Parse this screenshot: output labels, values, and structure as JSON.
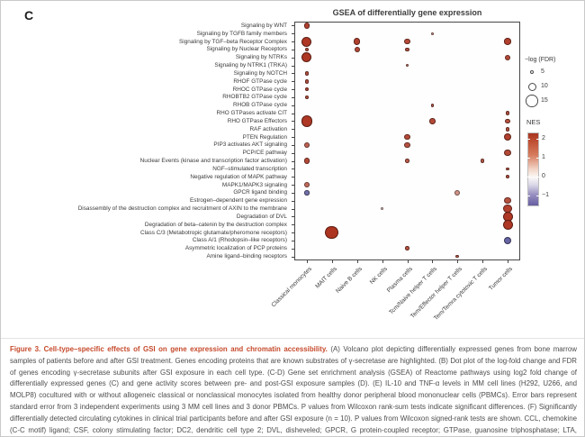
{
  "panel_label": "C",
  "chart_data": {
    "type": "scatter",
    "title": "GSEA of differentially gene expression",
    "xlabel": "",
    "ylabel": "",
    "categories_x": [
      "Classical monocytes",
      "MAIT cells",
      "Naive B cells",
      "NK cells",
      "Plasma cells",
      "Tcm/Naive helper T cells",
      "Tem/Effector helper T cells",
      "Tem/Temra cytotoxic T cells",
      "Tumor cells"
    ],
    "categories_y": [
      "Signaling by WNT",
      "Signaling by TGFB family members",
      "Signaling by TGF–beta Receptor Complex",
      "Signaling by Nuclear Receptors",
      "Signaling by NTRKs",
      "Signaling by NTRK1 (TRKA)",
      "Signaling by NOTCH",
      "RHOF GTPase cycle",
      "RHOC GTPase cycle",
      "RHOBTB2 GTPase cycle",
      "RHOB GTPase cycle",
      "RHO GTPases activate CIT",
      "RHO GTPase Effectors",
      "RAF activation",
      "PTEN Regulation",
      "PIP3 activates AKT signaling",
      "PCP/CE pathway",
      "Nuclear Events (kinase and transcription factor activation)",
      "NGF–stimulated transcription",
      "Negative regulation of MAPK pathway",
      "MAPK1/MAPK3 signaling",
      "GPCR ligand binding",
      "Estrogen–dependent gene expression",
      "Disassembly of the destruction complex and recruitment of AXIN to the membrane",
      "Degradation of DVL",
      "Degradation of beta–catenin by the destruction complex",
      "Class C/3 (Metabotropic glutamate/pheromone receptors)",
      "Class A/1 (Rhodopsin–like receptors)",
      "Asymmetric localization of PCP proteins",
      "Amine ligand–binding receptors"
    ],
    "size_legend": {
      "title": "−log (FDR)",
      "values": [
        5,
        10,
        15
      ]
    },
    "color_legend": {
      "title": "NES",
      "ticks": [
        2,
        1,
        0,
        -1
      ],
      "domain_top": 2.35,
      "domain_bottom": -1.6,
      "color_high": "#ac3420",
      "color_mid": "#f8f6f4",
      "color_low": "#504e96"
    },
    "points": [
      {
        "r": 1,
        "c": 1,
        "fdr": 7,
        "nes": 2.2
      },
      {
        "r": 2,
        "c": 6,
        "fdr": 3,
        "nes": 1.2
      },
      {
        "r": 3,
        "c": 1,
        "fdr": 12,
        "nes": 2.3
      },
      {
        "r": 3,
        "c": 3,
        "fdr": 8,
        "nes": 2.2
      },
      {
        "r": 3,
        "c": 5,
        "fdr": 7,
        "nes": 2.1
      },
      {
        "r": 3,
        "c": 9,
        "fdr": 8,
        "nes": 2.2
      },
      {
        "r": 4,
        "c": 1,
        "fdr": 5,
        "nes": 2.0
      },
      {
        "r": 4,
        "c": 3,
        "fdr": 7,
        "nes": 2.1
      },
      {
        "r": 4,
        "c": 5,
        "fdr": 5,
        "nes": 2.0
      },
      {
        "r": 5,
        "c": 1,
        "fdr": 12,
        "nes": 2.3
      },
      {
        "r": 5,
        "c": 9,
        "fdr": 7,
        "nes": 2.1
      },
      {
        "r": 6,
        "c": 5,
        "fdr": 4,
        "nes": 1.6
      },
      {
        "r": 7,
        "c": 1,
        "fdr": 5,
        "nes": 2.0
      },
      {
        "r": 8,
        "c": 1,
        "fdr": 5,
        "nes": 2.0
      },
      {
        "r": 9,
        "c": 1,
        "fdr": 5,
        "nes": 2.1
      },
      {
        "r": 10,
        "c": 1,
        "fdr": 4,
        "nes": 2.0
      },
      {
        "r": 11,
        "c": 6,
        "fdr": 4,
        "nes": 1.9
      },
      {
        "r": 12,
        "c": 9,
        "fdr": 5,
        "nes": 2.0
      },
      {
        "r": 13,
        "c": 1,
        "fdr": 14,
        "nes": 2.3
      },
      {
        "r": 13,
        "c": 6,
        "fdr": 7,
        "nes": 2.1
      },
      {
        "r": 13,
        "c": 9,
        "fdr": 6,
        "nes": 2.0
      },
      {
        "r": 14,
        "c": 9,
        "fdr": 5,
        "nes": 2.0
      },
      {
        "r": 15,
        "c": 5,
        "fdr": 7,
        "nes": 2.1
      },
      {
        "r": 15,
        "c": 9,
        "fdr": 9,
        "nes": 2.2
      },
      {
        "r": 16,
        "c": 1,
        "fdr": 7,
        "nes": 1.8
      },
      {
        "r": 16,
        "c": 5,
        "fdr": 7,
        "nes": 2.0
      },
      {
        "r": 17,
        "c": 9,
        "fdr": 8,
        "nes": 2.1
      },
      {
        "r": 18,
        "c": 1,
        "fdr": 7,
        "nes": 2.1
      },
      {
        "r": 18,
        "c": 5,
        "fdr": 5,
        "nes": 1.9
      },
      {
        "r": 18,
        "c": 8,
        "fdr": 5,
        "nes": 1.9
      },
      {
        "r": 19,
        "c": 9,
        "fdr": 4,
        "nes": 2.0
      },
      {
        "r": 20,
        "c": 9,
        "fdr": 4,
        "nes": 2.0
      },
      {
        "r": 21,
        "c": 1,
        "fdr": 7,
        "nes": 1.7
      },
      {
        "r": 22,
        "c": 1,
        "fdr": 6,
        "nes": -1.2
      },
      {
        "r": 22,
        "c": 7,
        "fdr": 7,
        "nes": 1.2
      },
      {
        "r": 23,
        "c": 9,
        "fdr": 8,
        "nes": 2.0
      },
      {
        "r": 24,
        "c": 4,
        "fdr": 3,
        "nes": 0.6
      },
      {
        "r": 24,
        "c": 9,
        "fdr": 10,
        "nes": 2.2
      },
      {
        "r": 25,
        "c": 9,
        "fdr": 12,
        "nes": 2.3
      },
      {
        "r": 26,
        "c": 9,
        "fdr": 12,
        "nes": 2.3
      },
      {
        "r": 27,
        "c": 2,
        "fdr": 16,
        "nes": 2.4
      },
      {
        "r": 28,
        "c": 9,
        "fdr": 9,
        "nes": -1.3
      },
      {
        "r": 29,
        "c": 5,
        "fdr": 5,
        "nes": 2.0
      },
      {
        "r": 30,
        "c": 7,
        "fdr": 4,
        "nes": 1.9
      }
    ]
  },
  "caption": {
    "title": "Figure 3. Cell-type–specific effects of GSI on gene expression and chromatin accessibility.",
    "body": "(A) Volcano plot depicting differentially expressed genes from bone marrow samples of patients before and after GSI treatment. Genes encoding proteins that are known substrates of γ-secretase are highlighted. (B) Dot plot of the log-fold change and FDR of genes encoding γ-secretase subunits after GSI exposure in each cell type. (C-D) Gene set enrichment analysis (GSEA) of Reactome pathways using log2 fold change of differentially expressed genes (C) and gene activity scores between pre- and post-GSI exposure samples (D). (E) IL-10 and TNF-α levels in MM cell lines (H292, U266, and MOLP8) cocultured with or without allogeneic classical or nonclassical monocytes isolated from healthy donor peripheral blood mononuclear cells (PBMCs). Error bars represent standard error from 3 independent experiments using 3 MM cell lines and 3 donor PBMCs. P values from Wilcoxon rank-sum tests indicate significant differences. (F) Significantly differentially detected circulating cytokines in clinical trial participants before and after GSI exposure (n = 10). P values from Wilcoxon signed-rank tests are shown. CCL, chemokine (C-C motif) ligand; CSF, colony stimulating factor; DC2, dendritic cell type 2; DVL, disheveled; GPCR, G protein-coupled receptor; GTPase, guanosine triphosphatase; LTA, lymphotoxin-α; NES, normalized"
  }
}
